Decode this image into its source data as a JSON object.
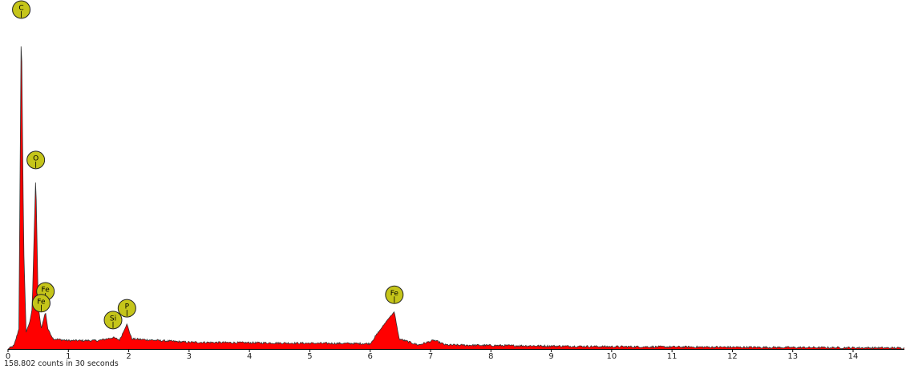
{
  "chart_data": {
    "type": "area",
    "title": "",
    "xlabel": "",
    "ylabel": "",
    "xlim": [
      0,
      14.85
    ],
    "ylim": [
      0,
      1.0
    ],
    "x_ticks": [
      0,
      1,
      2,
      3,
      4,
      5,
      6,
      7,
      8,
      9,
      10,
      11,
      12,
      13,
      14
    ],
    "x_tick_labels": [
      "0",
      "1",
      "2",
      "3",
      "4",
      "5",
      "6",
      "7",
      "8",
      "9",
      "10",
      "11",
      "12",
      "13",
      "14"
    ],
    "grid": false,
    "legend": "none",
    "fill_color": "#ff0000",
    "outline_color": "#333333",
    "label_color": "#c5c51a",
    "series": [
      {
        "values_note_free": true,
        "spectrum": [
          [
            0.0,
            0.0
          ],
          [
            0.1,
            0.01
          ],
          [
            0.18,
            0.06
          ],
          [
            0.22,
            0.99
          ],
          [
            0.26,
            0.3
          ],
          [
            0.3,
            0.05
          ],
          [
            0.36,
            0.08
          ],
          [
            0.4,
            0.12
          ],
          [
            0.46,
            0.52
          ],
          [
            0.5,
            0.13
          ],
          [
            0.55,
            0.06
          ],
          [
            0.62,
            0.11
          ],
          [
            0.66,
            0.06
          ],
          [
            0.75,
            0.03
          ],
          [
            1.0,
            0.025
          ],
          [
            1.5,
            0.025
          ],
          [
            1.74,
            0.034
          ],
          [
            1.85,
            0.027
          ],
          [
            1.97,
            0.074
          ],
          [
            2.05,
            0.03
          ],
          [
            3.0,
            0.02
          ],
          [
            5.0,
            0.017
          ],
          [
            6.0,
            0.016
          ],
          [
            6.3,
            0.09
          ],
          [
            6.4,
            0.11
          ],
          [
            6.48,
            0.03
          ],
          [
            6.8,
            0.012
          ],
          [
            7.06,
            0.026
          ],
          [
            7.25,
            0.012
          ],
          [
            10.0,
            0.007
          ],
          [
            14.85,
            0.003
          ]
        ]
      }
    ],
    "peaks": [
      {
        "label": "C",
        "x": 0.22,
        "y": 0.99
      },
      {
        "label": "O",
        "x": 0.46,
        "y": 0.53
      },
      {
        "label": "Fe",
        "x": 0.62,
        "y": 0.14
      },
      {
        "label": "Fe",
        "x": 0.55,
        "y": 0.105
      },
      {
        "label": "Si",
        "x": 1.74,
        "y": 0.055
      },
      {
        "label": "P",
        "x": 1.97,
        "y": 0.09
      },
      {
        "label": "Fe",
        "x": 6.4,
        "y": 0.13
      }
    ]
  },
  "footer": {
    "counts_text": "158.802 counts in 30 seconds"
  }
}
